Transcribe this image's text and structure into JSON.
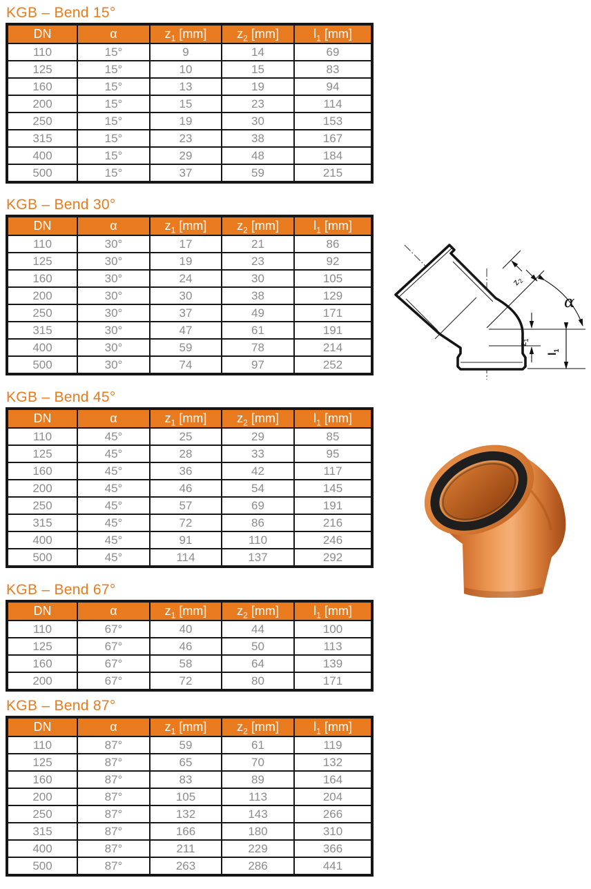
{
  "colors": {
    "accent_orange": "#E87A1F",
    "table_border": "#161616",
    "cell_text_gray": "#8C8C8C",
    "header_text": "#FFFFFF",
    "product_orange": "#D9772F"
  },
  "table_columns": [
    {
      "key": "dn",
      "pre": "DN",
      "sub": "",
      "post": ""
    },
    {
      "key": "alpha",
      "pre": "α",
      "sub": "",
      "post": ""
    },
    {
      "key": "z1",
      "pre": "z",
      "sub": "1",
      "post": " [mm]"
    },
    {
      "key": "z2",
      "pre": "z",
      "sub": "2",
      "post": " [mm]"
    },
    {
      "key": "l1",
      "pre": "l",
      "sub": "1",
      "post": " [mm]"
    }
  ],
  "sections": [
    {
      "title": "KGB – Bend 15°",
      "rows": [
        [
          "110",
          "15°",
          "9",
          "14",
          "69"
        ],
        [
          "125",
          "15°",
          "10",
          "15",
          "83"
        ],
        [
          "160",
          "15°",
          "13",
          "19",
          "94"
        ],
        [
          "200",
          "15°",
          "15",
          "23",
          "114"
        ],
        [
          "250",
          "15°",
          "19",
          "30",
          "153"
        ],
        [
          "315",
          "15°",
          "23",
          "38",
          "167"
        ],
        [
          "400",
          "15°",
          "29",
          "48",
          "184"
        ],
        [
          "500",
          "15°",
          "37",
          "59",
          "215"
        ]
      ]
    },
    {
      "title": "KGB – Bend 30°",
      "rows": [
        [
          "110",
          "30°",
          "17",
          "21",
          "86"
        ],
        [
          "125",
          "30°",
          "19",
          "23",
          "92"
        ],
        [
          "160",
          "30°",
          "24",
          "30",
          "105"
        ],
        [
          "200",
          "30°",
          "30",
          "38",
          "129"
        ],
        [
          "250",
          "30°",
          "37",
          "49",
          "171"
        ],
        [
          "315",
          "30°",
          "47",
          "61",
          "191"
        ],
        [
          "400",
          "30°",
          "59",
          "78",
          "214"
        ],
        [
          "500",
          "30°",
          "74",
          "97",
          "252"
        ]
      ]
    },
    {
      "title": "KGB – Bend 45°",
      "rows": [
        [
          "110",
          "45°",
          "25",
          "29",
          "85"
        ],
        [
          "125",
          "45°",
          "28",
          "33",
          "95"
        ],
        [
          "160",
          "45°",
          "36",
          "42",
          "117"
        ],
        [
          "200",
          "45°",
          "46",
          "54",
          "145"
        ],
        [
          "250",
          "45°",
          "57",
          "69",
          "191"
        ],
        [
          "315",
          "45°",
          "72",
          "86",
          "216"
        ],
        [
          "400",
          "45°",
          "91",
          "110",
          "246"
        ],
        [
          "500",
          "45°",
          "114",
          "137",
          "292"
        ]
      ]
    },
    {
      "title": "KGB – Bend 67°",
      "rows": [
        [
          "110",
          "67°",
          "40",
          "44",
          "100"
        ],
        [
          "125",
          "67°",
          "46",
          "50",
          "113"
        ],
        [
          "160",
          "67°",
          "58",
          "64",
          "139"
        ],
        [
          "200",
          "67°",
          "72",
          "80",
          "171"
        ]
      ]
    },
    {
      "title": "KGB – Bend 87°",
      "rows": [
        [
          "110",
          "87°",
          "59",
          "61",
          "119"
        ],
        [
          "125",
          "87°",
          "65",
          "70",
          "132"
        ],
        [
          "160",
          "87°",
          "83",
          "89",
          "164"
        ],
        [
          "200",
          "87°",
          "105",
          "113",
          "204"
        ],
        [
          "250",
          "87°",
          "132",
          "143",
          "266"
        ],
        [
          "315",
          "87°",
          "166",
          "180",
          "310"
        ],
        [
          "400",
          "87°",
          "211",
          "229",
          "366"
        ],
        [
          "500",
          "87°",
          "263",
          "286",
          "441"
        ]
      ]
    }
  ],
  "diagram": {
    "label_alpha": "α",
    "label_z2": {
      "pre": "z",
      "sub": "2"
    },
    "label_z1": {
      "pre": "z",
      "sub": "1"
    },
    "label_l1": {
      "pre": "l",
      "sub": "1"
    }
  }
}
